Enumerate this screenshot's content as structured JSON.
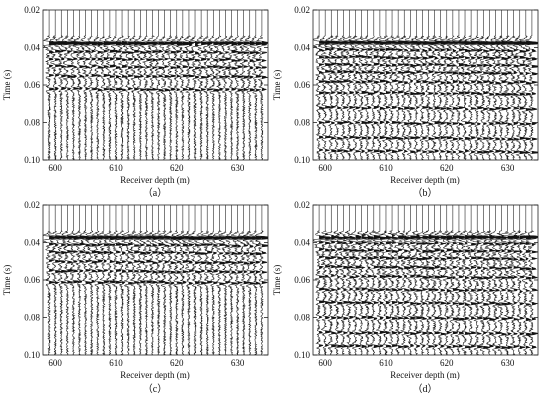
{
  "chart_data": [
    {
      "type": "wiggle",
      "panel_label": "（a）",
      "xlabel": "Receiver depth (m)",
      "ylabel": "Time (s)",
      "xlim": [
        598,
        635
      ],
      "ylim": [
        0.02,
        0.1
      ],
      "y_inverted": true,
      "x_ticks": [
        "600",
        "610",
        "620",
        "630"
      ],
      "y_ticks": [
        "0.02",
        "0.04",
        "0.06",
        "0.08",
        "0.10"
      ],
      "trace_spacing": 1,
      "first_arrival_s": 0.034,
      "reflection_times_s": [
        0.038,
        0.042,
        0.046,
        0.05,
        0.055,
        0.062
      ],
      "noise_level": 0.45,
      "grid": false
    },
    {
      "type": "wiggle",
      "panel_label": "（b）",
      "xlabel": "Receiver depth (m)",
      "ylabel": "Time (s)",
      "xlim": [
        598,
        635
      ],
      "ylim": [
        0.02,
        0.1
      ],
      "y_inverted": true,
      "x_ticks": [
        "600",
        "610",
        "620",
        "630"
      ],
      "y_ticks": [
        "0.02",
        "0.04",
        "0.06",
        "0.08",
        "0.10"
      ],
      "trace_spacing": 1,
      "first_arrival_s": 0.034,
      "reflection_times_s": [
        0.037,
        0.041,
        0.045,
        0.049,
        0.053,
        0.058,
        0.064,
        0.072,
        0.08,
        0.088,
        0.095
      ],
      "noise_level": 0.5,
      "grid": false
    },
    {
      "type": "wiggle",
      "panel_label": "（c）",
      "xlabel": "Receiver depth (m)",
      "ylabel": "Time (s)",
      "xlim": [
        598,
        635
      ],
      "ylim": [
        0.02,
        0.1
      ],
      "y_inverted": true,
      "x_ticks": [
        "600",
        "610",
        "620",
        "630"
      ],
      "y_ticks": [
        "0.02",
        "0.04",
        "0.06",
        "0.08",
        "0.10"
      ],
      "trace_spacing": 1,
      "first_arrival_s": 0.034,
      "reflection_times_s": [
        0.037,
        0.041,
        0.045,
        0.05,
        0.055,
        0.061
      ],
      "noise_level": 0.45,
      "grid": false
    },
    {
      "type": "wiggle",
      "panel_label": "（d）",
      "xlabel": "Receiver depth (m)",
      "ylabel": "Time (s)",
      "xlim": [
        598,
        635
      ],
      "ylim": [
        0.02,
        0.1
      ],
      "y_inverted": true,
      "x_ticks": [
        "600",
        "610",
        "620",
        "630"
      ],
      "y_ticks": [
        "0.02",
        "0.04",
        "0.06",
        "0.08",
        "0.10"
      ],
      "trace_spacing": 1,
      "first_arrival_s": 0.034,
      "reflection_times_s": [
        0.036,
        0.04,
        0.044,
        0.048,
        0.053,
        0.058,
        0.065,
        0.072,
        0.08,
        0.088,
        0.095
      ],
      "noise_level": 0.55,
      "grid": false
    }
  ],
  "colors": {
    "trace": "#111111",
    "axis": "#222222",
    "background": "#ffffff"
  }
}
